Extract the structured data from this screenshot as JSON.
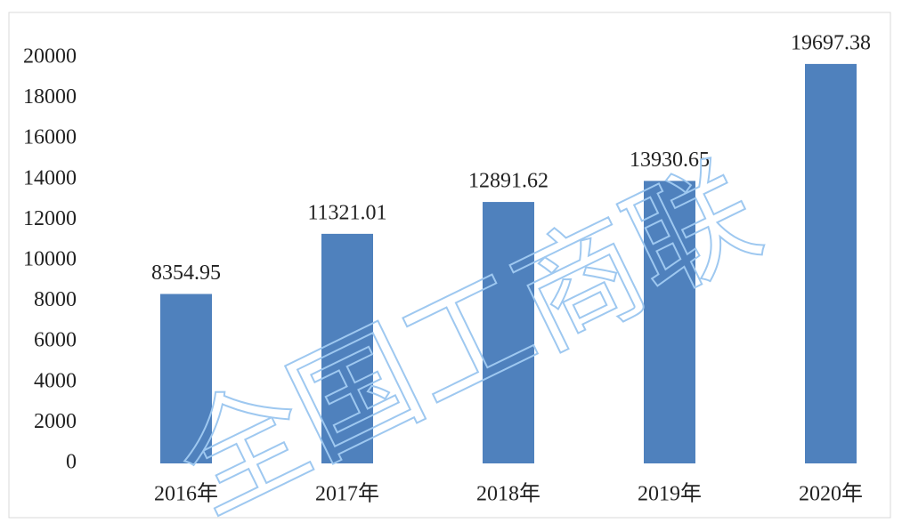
{
  "chart_data": {
    "type": "bar",
    "categories": [
      "2016年",
      "2017年",
      "2018年",
      "2019年",
      "2020年"
    ],
    "values": [
      8354.95,
      11321.01,
      12891.62,
      13930.65,
      19697.38
    ],
    "color": "#4f81bd",
    "ylim": [
      0,
      20000
    ],
    "yticks": [
      0,
      2000,
      4000,
      6000,
      8000,
      10000,
      12000,
      14000,
      16000,
      18000,
      20000
    ],
    "grid": false,
    "watermark": "全国工商联"
  }
}
